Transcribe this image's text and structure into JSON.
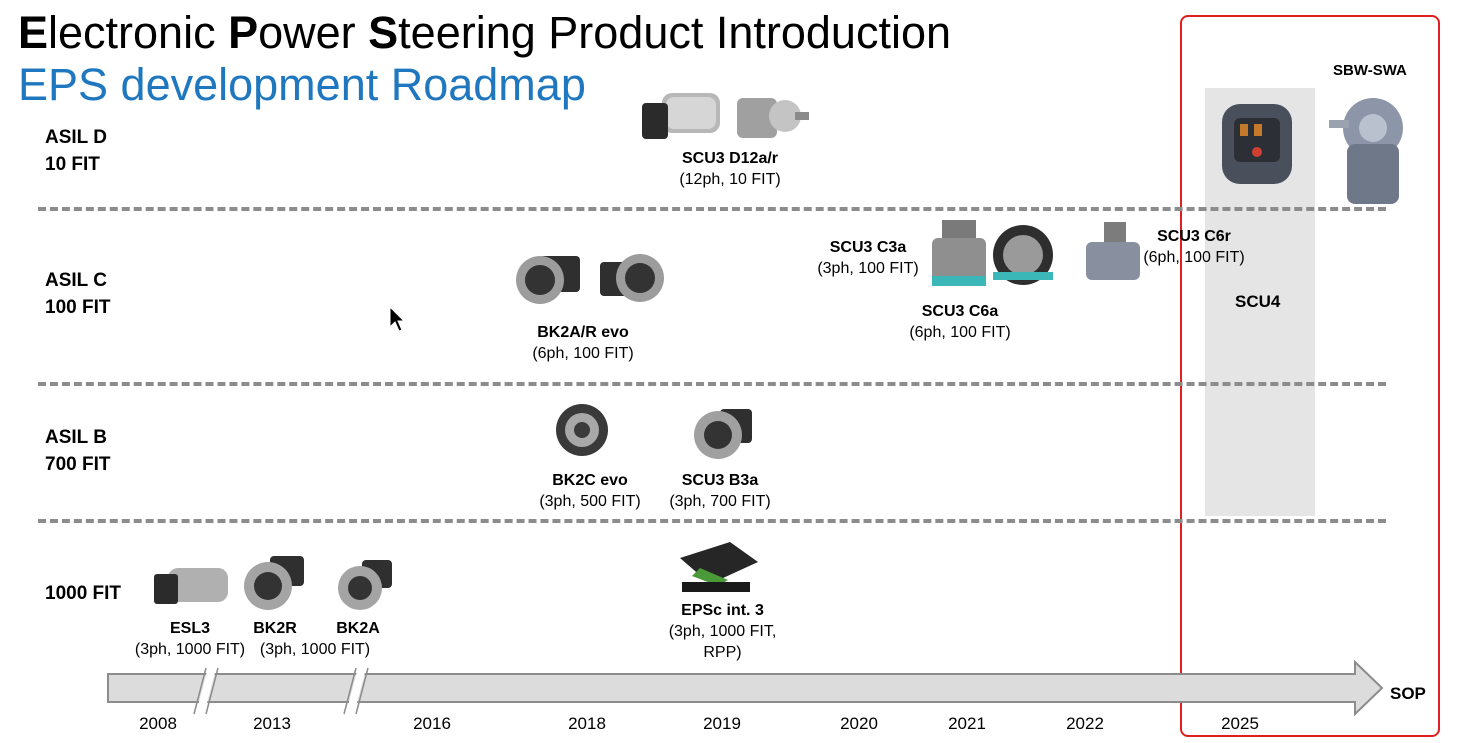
{
  "title": {
    "w1_cap": "E",
    "w1_rest": "lectronic ",
    "w2_cap": "P",
    "w2_rest": "ower ",
    "w3_cap": "S",
    "w3_rest": "teering Product Introduction"
  },
  "subtitle": "EPS development Roadmap",
  "rows": [
    {
      "line1": "ASIL D",
      "line2": "10 FIT"
    },
    {
      "line1": "ASIL C",
      "line2": "100 FIT"
    },
    {
      "line1": "ASIL B",
      "line2": "700 FIT"
    },
    {
      "line1": "",
      "line2": "1000 FIT"
    }
  ],
  "products": {
    "scu3_d12": {
      "name": "SCU3 D12a/r",
      "spec": "(12ph, 10 FIT)"
    },
    "bk2a_evo": {
      "name": "BK2A/R evo",
      "spec": "(6ph, 100 FIT)"
    },
    "scu3_c3a": {
      "name": "SCU3 C3a",
      "spec": "(3ph, 100 FIT)"
    },
    "scu3_c6a": {
      "name": "SCU3 C6a",
      "spec": "(6ph, 100 FIT)"
    },
    "scu3_c6r": {
      "name": "SCU3 C6r",
      "spec": "(6ph, 100 FIT)"
    },
    "bk2c_evo": {
      "name": "BK2C evo",
      "spec": "(3ph, 500 FIT)"
    },
    "scu3_b3a": {
      "name": "SCU3 B3a",
      "spec": "(3ph, 700 FIT)"
    },
    "esl3": {
      "name": "ESL3",
      "spec": "(3ph, 1000 FIT)"
    },
    "bk2r": {
      "name": "BK2R",
      "spec": "(3ph, 1000 FIT)"
    },
    "bk2a": {
      "name": "BK2A",
      "spec": ""
    },
    "epsc": {
      "name": "EPSc int. 3",
      "spec": "(3ph, 1000 FIT,",
      "spec2": "RPP)"
    }
  },
  "scu4_label": "SCU4",
  "sbw_label": "SBW-SWA",
  "sop_label": "SOP",
  "years": [
    "2008",
    "2013",
    "2016",
    "2018",
    "2019",
    "2020",
    "2021",
    "2022",
    "2025"
  ],
  "colors": {
    "accent_blue": "#1f78bf",
    "highlight_red": "#e02020",
    "scu4_band": "#e5e5e5"
  }
}
